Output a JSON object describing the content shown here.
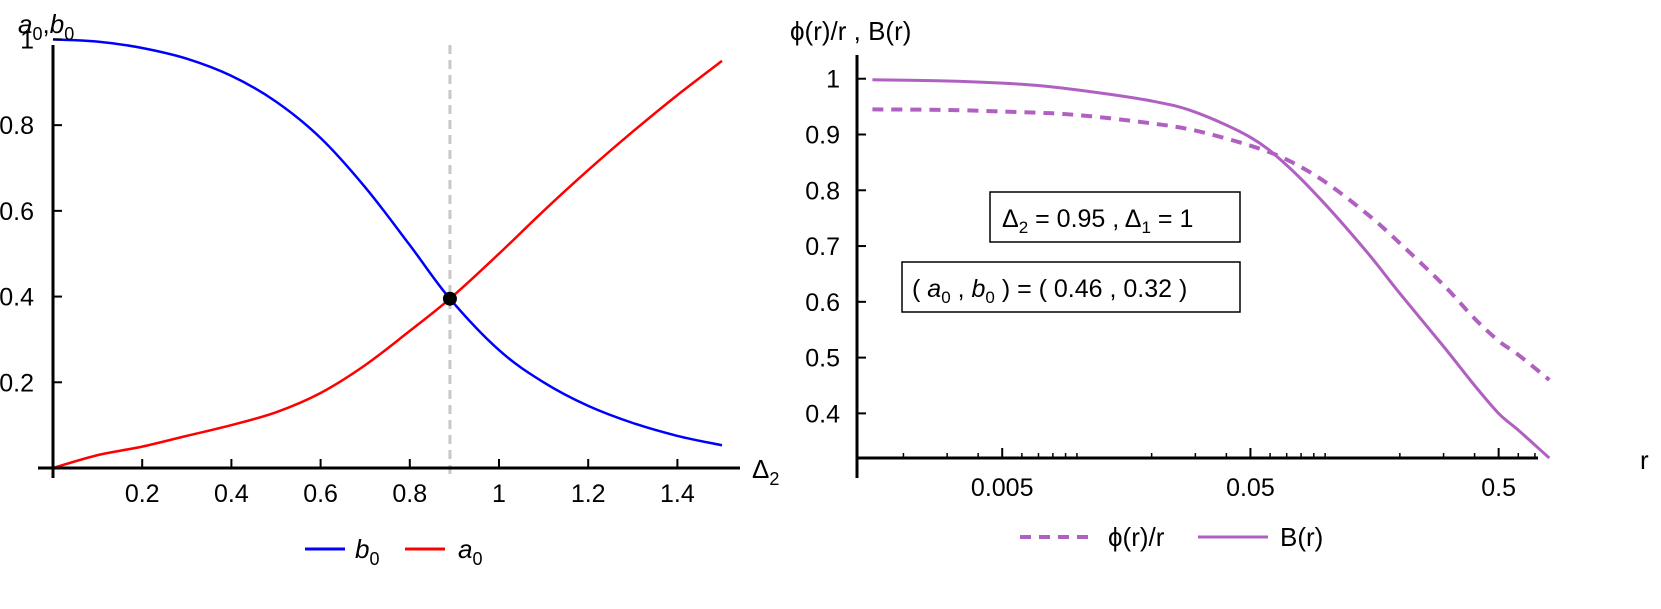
{
  "chart_data": [
    {
      "type": "line",
      "ylabel": {
        "base1": "a",
        "sub1": "0",
        "sep": ",",
        "base2": "b",
        "sub2": "0"
      },
      "xlabel": {
        "base": "Δ",
        "sub": "2"
      },
      "xlim": [
        0,
        1.5
      ],
      "ylim": [
        0,
        1.05
      ],
      "xticks": [
        {
          "value": 0.2,
          "label": "0.2"
        },
        {
          "value": 0.4,
          "label": "0.4"
        },
        {
          "value": 0.6,
          "label": "0.6"
        },
        {
          "value": 0.8,
          "label": "0.8"
        },
        {
          "value": 1.0,
          "label": "1"
        },
        {
          "value": 1.2,
          "label": "1.2"
        },
        {
          "value": 1.4,
          "label": "1.4"
        }
      ],
      "yticks": [
        {
          "value": 0.2,
          "label": "0.2"
        },
        {
          "value": 0.4,
          "label": "0.4"
        },
        {
          "value": 0.6,
          "label": "0.6"
        },
        {
          "value": 0.8,
          "label": "0.8"
        },
        {
          "value": 1.0,
          "label": "1"
        }
      ],
      "vline": {
        "x": 0.89,
        "color": "#c8c8c8"
      },
      "marker": {
        "x": 0.89,
        "y": 0.395
      },
      "series": [
        {
          "key": "b0",
          "name": "b",
          "name_sub": "0",
          "color": "#0000ff",
          "x": [
            0,
            0.1,
            0.2,
            0.3,
            0.4,
            0.5,
            0.6,
            0.7,
            0.8,
            0.89,
            1.0,
            1.1,
            1.2,
            1.3,
            1.4,
            1.5
          ],
          "y": [
            1.0,
            0.995,
            0.98,
            0.955,
            0.915,
            0.855,
            0.77,
            0.655,
            0.52,
            0.395,
            0.275,
            0.2,
            0.145,
            0.105,
            0.075,
            0.053
          ]
        },
        {
          "key": "a0",
          "name": "a",
          "name_sub": "0",
          "color": "#ff0000",
          "x": [
            0,
            0.1,
            0.2,
            0.3,
            0.4,
            0.5,
            0.6,
            0.7,
            0.8,
            0.89,
            1.0,
            1.1,
            1.2,
            1.3,
            1.4,
            1.5
          ],
          "y": [
            0.0,
            0.03,
            0.05,
            0.075,
            0.1,
            0.13,
            0.175,
            0.24,
            0.32,
            0.395,
            0.5,
            0.6,
            0.695,
            0.785,
            0.87,
            0.95
          ]
        }
      ],
      "legend": {
        "placement": "bottom",
        "order": [
          "b0",
          "a0"
        ]
      }
    },
    {
      "type": "line",
      "ylabel": "ϕ(r)/r , B(r)",
      "xlabel": "r",
      "xscale": "log",
      "xlim": [
        0.0013,
        0.9
      ],
      "ylim": [
        0.32,
        1.03
      ],
      "xticks": [
        {
          "value": 0.005,
          "label": "0.005"
        },
        {
          "value": 0.05,
          "label": "0.05"
        },
        {
          "value": 0.5,
          "label": "0.5"
        }
      ],
      "yticks": [
        {
          "value": 0.4,
          "label": "0.4"
        },
        {
          "value": 0.5,
          "label": "0.5"
        },
        {
          "value": 0.6,
          "label": "0.6"
        },
        {
          "value": 0.7,
          "label": "0.7"
        },
        {
          "value": 0.8,
          "label": "0.8"
        },
        {
          "value": 0.9,
          "label": "0.9"
        },
        {
          "value": 1.0,
          "label": "1"
        }
      ],
      "series": [
        {
          "key": "phi",
          "name": "ϕ(r)/r",
          "style": "dashed",
          "color": "#b060c0",
          "x": [
            0.0015,
            0.003,
            0.006,
            0.01,
            0.02,
            0.03,
            0.05,
            0.07,
            0.1,
            0.15,
            0.2,
            0.3,
            0.4,
            0.5,
            0.6,
            0.8
          ],
          "y": [
            0.945,
            0.944,
            0.94,
            0.935,
            0.92,
            0.907,
            0.88,
            0.855,
            0.815,
            0.755,
            0.705,
            0.63,
            0.57,
            0.53,
            0.505,
            0.46
          ]
        },
        {
          "key": "B",
          "name": "B(r)",
          "style": "solid",
          "color": "#b060c0",
          "x": [
            0.0015,
            0.003,
            0.006,
            0.01,
            0.02,
            0.03,
            0.05,
            0.07,
            0.1,
            0.15,
            0.2,
            0.3,
            0.4,
            0.5,
            0.6,
            0.8
          ],
          "y": [
            0.998,
            0.996,
            0.99,
            0.98,
            0.96,
            0.94,
            0.895,
            0.845,
            0.775,
            0.685,
            0.615,
            0.52,
            0.45,
            0.4,
            0.37,
            0.32
          ]
        }
      ],
      "annotations": [
        {
          "key": "deltas",
          "parts": [
            {
              "t": "Δ"
            },
            {
              "t": "2",
              "sub": true
            },
            {
              "t": " = 0.95 , Δ"
            },
            {
              "t": "1",
              "sub": true
            },
            {
              "t": " = 1"
            }
          ]
        },
        {
          "key": "a0b0",
          "parts": [
            {
              "t": "( "
            },
            {
              "t": "a",
              "italic": true
            },
            {
              "t": "0",
              "sub": true
            },
            {
              "t": " , "
            },
            {
              "t": "b",
              "italic": true
            },
            {
              "t": "0",
              "sub": true
            },
            {
              "t": " ) = ( 0.46 , 0.32 )"
            }
          ]
        }
      ],
      "legend": {
        "placement": "bottom",
        "order": [
          "phi",
          "B"
        ]
      }
    }
  ]
}
